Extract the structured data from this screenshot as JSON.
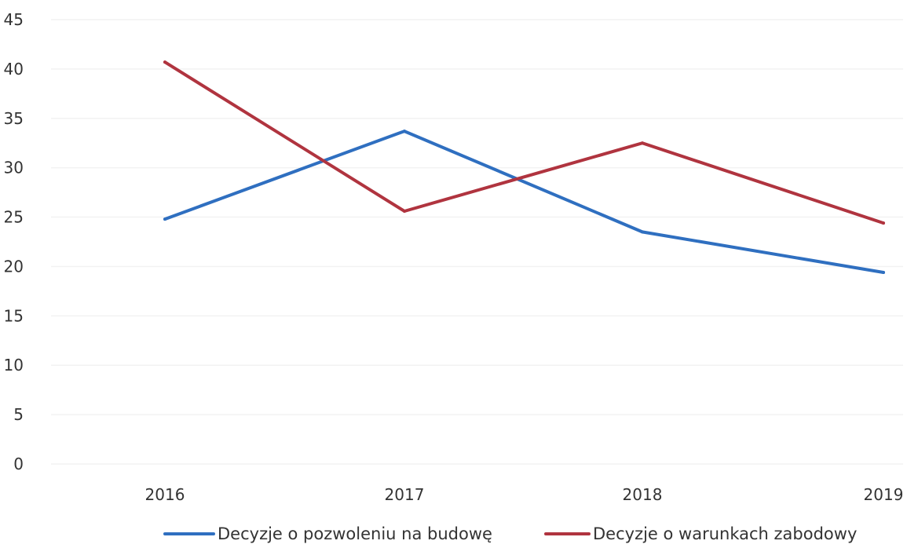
{
  "chart_data": {
    "type": "line",
    "title": "",
    "xlabel": "",
    "ylabel": "",
    "categories": [
      "2016",
      "2017",
      "2018",
      "2019"
    ],
    "ylim": [
      0,
      45
    ],
    "yticks": [
      0,
      5,
      10,
      15,
      20,
      25,
      30,
      35,
      40,
      45
    ],
    "grid": true,
    "legend_position": "bottom",
    "series": [
      {
        "name": "Decyzje o pozwoleniu na budowę",
        "color": "#2f6fc0",
        "values": [
          24.8,
          33.7,
          23.5,
          19.4
        ]
      },
      {
        "name": "Decyzje o warunkach zabodowy",
        "color": "#b0343f",
        "values": [
          40.7,
          25.6,
          32.5,
          24.4
        ]
      }
    ]
  }
}
